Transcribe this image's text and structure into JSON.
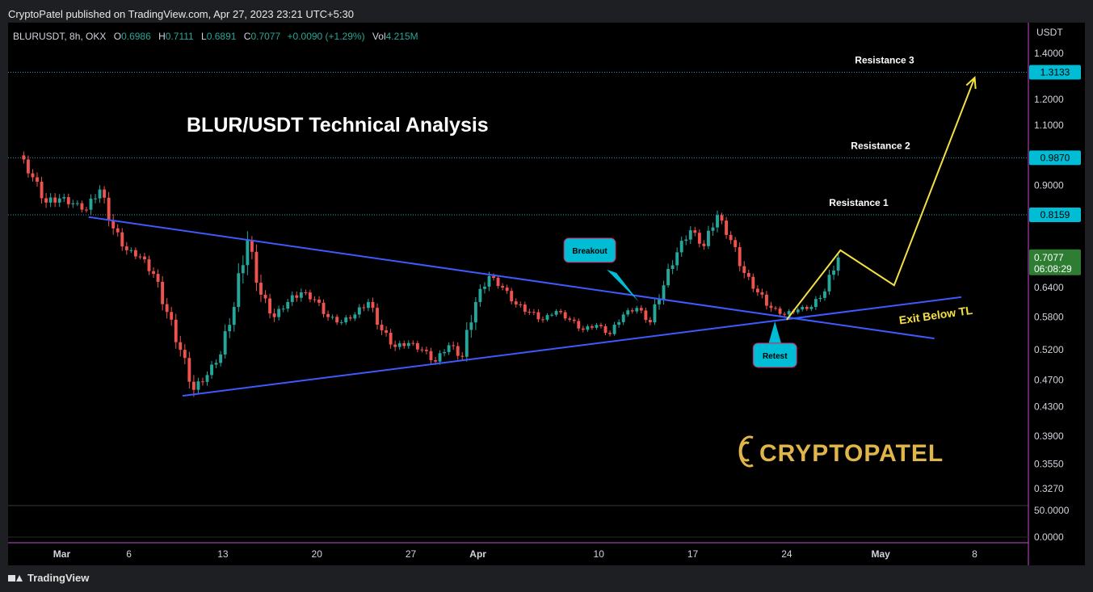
{
  "header": {
    "published_line": "CryptoPatel published on TradingView.com, Apr 27, 2023 23:21 UTC+5:30"
  },
  "legend": {
    "symbol": "BLURUSDT, 8h, OKX",
    "o_label": "O",
    "o_value": "0.6986",
    "h_label": "H",
    "h_value": "0.7111",
    "l_label": "L",
    "l_value": "0.6891",
    "c_label": "C",
    "c_value": "0.7077",
    "change": "+0.0090 (+1.29%)",
    "vol_label": "Vol",
    "vol_value": "4.215M"
  },
  "footer": {
    "brand": "TradingView"
  },
  "colors": {
    "up": "#26a69a",
    "down": "#ef5350",
    "trend": "#3d5afe",
    "projection": "#f5e042",
    "badge": "#00bcd4",
    "price_badge": "#2e7d32",
    "watermark": "#e0b64a"
  },
  "chart_data": {
    "type": "candlestick",
    "title": "BLUR/USDT Technical Analysis",
    "y_unit": "USDT",
    "y_scale": "log",
    "ylim": [
      0.31,
      1.55
    ],
    "y_ticks": [
      "1.4000",
      "1.2000",
      "1.1000",
      "0.9000",
      "0.6400",
      "0.5800",
      "0.5200",
      "0.4700",
      "0.4300",
      "0.3900",
      "0.3550",
      "0.3270"
    ],
    "x_ticks": [
      "Mar",
      "6",
      "13",
      "20",
      "27",
      "Apr",
      "10",
      "17",
      "24",
      "May",
      "8"
    ],
    "xlim": [
      "2023-02-25",
      "2023-05-12"
    ],
    "x_tick_dates": [
      "2023-03-01",
      "2023-03-06",
      "2023-03-13",
      "2023-03-20",
      "2023-03-27",
      "2023-04-01",
      "2023-04-10",
      "2023-04-17",
      "2023-04-24",
      "2023-05-01",
      "2023-05-08"
    ],
    "volume_pane_ticks": [
      "50.0000",
      "0.0000"
    ],
    "last_price": "0.7077",
    "countdown": "06:08:29",
    "levels": [
      {
        "name": "Resistance 3",
        "price": 1.3133,
        "label": "1.3133"
      },
      {
        "name": "Resistance 2",
        "price": 0.987,
        "label": "0.9870"
      },
      {
        "name": "Resistance 1",
        "price": 0.8159,
        "label": "0.8159"
      }
    ],
    "annotations": [
      {
        "text": "Breakout",
        "date": "2023-04-13",
        "price": 0.61
      },
      {
        "text": "Retest",
        "date": "2023-04-23",
        "price": 0.575
      },
      {
        "text": "Exit Below TL",
        "date": "2023-04-30",
        "price": 0.585
      }
    ],
    "trendlines": [
      {
        "name": "descending",
        "start": [
          "2023-03-03",
          0.81
        ],
        "end": [
          "2023-05-05",
          0.54
        ]
      },
      {
        "name": "ascending",
        "start": [
          "2023-03-10",
          0.446
        ],
        "end": [
          "2023-05-07",
          0.62
        ]
      }
    ],
    "projection_path": [
      [
        "2023-04-24",
        0.575
      ],
      [
        "2023-04-28",
        0.725
      ],
      [
        "2023-05-02",
        0.645
      ],
      [
        "2023-05-08",
        1.29
      ]
    ],
    "watermark": "CRYPTOPATEL",
    "ohlc": [
      [
        "2023-02-26",
        0.995,
        1.01,
        0.9,
        0.925
      ],
      [
        "2023-02-27",
        0.925,
        0.945,
        0.82,
        0.85
      ],
      [
        "2023-02-28",
        0.85,
        0.895,
        0.79,
        0.862
      ],
      [
        "2023-03-01",
        0.862,
        0.9,
        0.815,
        0.848
      ],
      [
        "2023-03-02",
        0.848,
        0.87,
        0.805,
        0.83
      ],
      [
        "2023-03-03",
        0.83,
        0.92,
        0.812,
        0.888
      ],
      [
        "2023-03-04",
        0.888,
        0.898,
        0.76,
        0.78
      ],
      [
        "2023-03-05",
        0.78,
        0.795,
        0.705,
        0.725
      ],
      [
        "2023-03-06",
        0.725,
        0.745,
        0.69,
        0.71
      ],
      [
        "2023-03-07",
        0.71,
        0.728,
        0.655,
        0.67
      ],
      [
        "2023-03-08",
        0.67,
        0.68,
        0.575,
        0.59
      ],
      [
        "2023-03-09",
        0.59,
        0.6,
        0.505,
        0.52
      ],
      [
        "2023-03-10",
        0.52,
        0.53,
        0.442,
        0.455
      ],
      [
        "2023-03-11",
        0.455,
        0.495,
        0.446,
        0.478
      ],
      [
        "2023-03-12",
        0.478,
        0.52,
        0.47,
        0.512
      ],
      [
        "2023-03-13",
        0.512,
        0.61,
        0.505,
        0.6
      ],
      [
        "2023-03-14",
        0.6,
        0.78,
        0.59,
        0.75
      ],
      [
        "2023-03-15",
        0.75,
        0.76,
        0.61,
        0.625
      ],
      [
        "2023-03-16",
        0.625,
        0.64,
        0.56,
        0.58
      ],
      [
        "2023-03-17",
        0.58,
        0.625,
        0.57,
        0.61
      ],
      [
        "2023-03-18",
        0.61,
        0.66,
        0.592,
        0.63
      ],
      [
        "2023-03-19",
        0.63,
        0.645,
        0.595,
        0.615
      ],
      [
        "2023-03-20",
        0.615,
        0.622,
        0.565,
        0.58
      ],
      [
        "2023-03-21",
        0.58,
        0.595,
        0.555,
        0.57
      ],
      [
        "2023-03-22",
        0.57,
        0.6,
        0.56,
        0.585
      ],
      [
        "2023-03-23",
        0.585,
        0.63,
        0.575,
        0.61
      ],
      [
        "2023-03-24",
        0.61,
        0.62,
        0.545,
        0.555
      ],
      [
        "2023-03-25",
        0.555,
        0.57,
        0.51,
        0.525
      ],
      [
        "2023-03-26",
        0.525,
        0.545,
        0.505,
        0.532
      ],
      [
        "2023-03-27",
        0.532,
        0.548,
        0.51,
        0.52
      ],
      [
        "2023-03-28",
        0.52,
        0.53,
        0.483,
        0.5
      ],
      [
        "2023-03-29",
        0.5,
        0.535,
        0.492,
        0.528
      ],
      [
        "2023-03-30",
        0.528,
        0.545,
        0.49,
        0.508
      ],
      [
        "2023-03-31",
        0.508,
        0.62,
        0.5,
        0.61
      ],
      [
        "2023-04-01",
        0.61,
        0.68,
        0.6,
        0.665
      ],
      [
        "2023-04-02",
        0.665,
        0.672,
        0.622,
        0.64
      ],
      [
        "2023-04-03",
        0.64,
        0.648,
        0.595,
        0.605
      ],
      [
        "2023-04-04",
        0.605,
        0.625,
        0.575,
        0.59
      ],
      [
        "2023-04-05",
        0.59,
        0.612,
        0.565,
        0.575
      ],
      [
        "2023-04-06",
        0.575,
        0.6,
        0.57,
        0.592
      ],
      [
        "2023-04-07",
        0.592,
        0.603,
        0.568,
        0.575
      ],
      [
        "2023-04-08",
        0.575,
        0.59,
        0.548,
        0.556
      ],
      [
        "2023-04-09",
        0.556,
        0.575,
        0.543,
        0.565
      ],
      [
        "2023-04-10",
        0.565,
        0.572,
        0.536,
        0.548
      ],
      [
        "2023-04-11",
        0.548,
        0.59,
        0.545,
        0.585
      ],
      [
        "2023-04-12",
        0.585,
        0.615,
        0.578,
        0.598
      ],
      [
        "2023-04-13",
        0.598,
        0.605,
        0.558,
        0.57
      ],
      [
        "2023-04-14",
        0.57,
        0.655,
        0.565,
        0.645
      ],
      [
        "2023-04-15",
        0.645,
        0.74,
        0.64,
        0.72
      ],
      [
        "2023-04-16",
        0.72,
        0.795,
        0.705,
        0.775
      ],
      [
        "2023-04-17",
        0.775,
        0.79,
        0.715,
        0.735
      ],
      [
        "2023-04-18",
        0.735,
        0.835,
        0.728,
        0.815
      ],
      [
        "2023-04-19",
        0.815,
        0.822,
        0.74,
        0.75
      ],
      [
        "2023-04-20",
        0.75,
        0.758,
        0.66,
        0.672
      ],
      [
        "2023-04-21",
        0.672,
        0.68,
        0.618,
        0.63
      ],
      [
        "2023-04-22",
        0.63,
        0.64,
        0.576,
        0.598
      ],
      [
        "2023-04-23",
        0.598,
        0.605,
        0.572,
        0.585
      ],
      [
        "2023-04-24",
        0.585,
        0.605,
        0.572,
        0.595
      ],
      [
        "2023-04-25",
        0.595,
        0.615,
        0.582,
        0.6
      ],
      [
        "2023-04-26",
        0.6,
        0.64,
        0.59,
        0.632
      ],
      [
        "2023-04-27",
        0.632,
        0.72,
        0.625,
        0.7077
      ]
    ]
  }
}
